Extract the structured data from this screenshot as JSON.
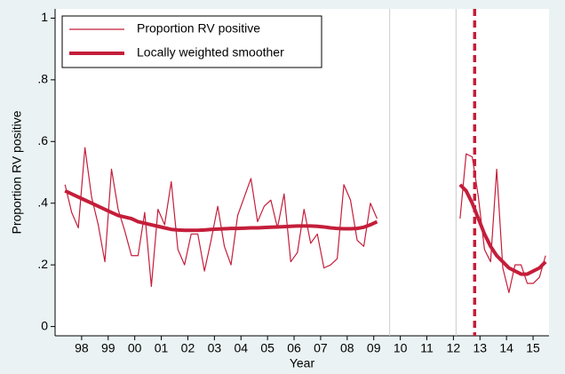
{
  "chart_data": {
    "type": "line",
    "x_label": "Year",
    "y_label": "Proportion RV positive",
    "xlim": [
      1997,
      2015.6
    ],
    "ylim": [
      -0.03,
      1.03
    ],
    "xticks": [
      {
        "value": 1998,
        "label": "98"
      },
      {
        "value": 1999,
        "label": "99"
      },
      {
        "value": 2000,
        "label": "00"
      },
      {
        "value": 2001,
        "label": "01"
      },
      {
        "value": 2002,
        "label": "02"
      },
      {
        "value": 2003,
        "label": "03"
      },
      {
        "value": 2004,
        "label": "04"
      },
      {
        "value": 2005,
        "label": "05"
      },
      {
        "value": 2006,
        "label": "06"
      },
      {
        "value": 2007,
        "label": "07"
      },
      {
        "value": 2008,
        "label": "08"
      },
      {
        "value": 2009,
        "label": "09"
      },
      {
        "value": 2010,
        "label": "10"
      },
      {
        "value": 2011,
        "label": "11"
      },
      {
        "value": 2012,
        "label": "12"
      },
      {
        "value": 2013,
        "label": "13"
      },
      {
        "value": 2014,
        "label": "14"
      },
      {
        "value": 2015,
        "label": "15"
      }
    ],
    "yticks": [
      0,
      {
        "value": 0.2,
        "label": ".2"
      },
      {
        "value": 0.4,
        "label": ".4"
      },
      {
        "value": 0.6,
        "label": ".6"
      },
      {
        "value": 0.8,
        "label": ".8"
      },
      1
    ],
    "legend": "top-left",
    "vlines": [
      2009.6,
      2012.1
    ],
    "dashed_line_x": 2012.8,
    "x": [
      1997.375,
      1997.625,
      1997.875,
      1998.125,
      1998.375,
      1998.625,
      1998.875,
      1999.125,
      1999.375,
      1999.625,
      1999.875,
      2000.125,
      2000.375,
      2000.625,
      2000.875,
      2001.125,
      2001.375,
      2001.625,
      2001.875,
      2002.125,
      2002.375,
      2002.625,
      2002.875,
      2003.125,
      2003.375,
      2003.625,
      2003.875,
      2004.125,
      2004.375,
      2004.625,
      2004.875,
      2005.125,
      2005.375,
      2005.625,
      2005.875,
      2006.125,
      2006.375,
      2006.625,
      2006.875,
      2007.125,
      2007.375,
      2007.625,
      2007.875,
      2008.125,
      2008.375,
      2008.625,
      2008.875,
      2009.125,
      2010.5,
      2012.25,
      2012.48,
      2012.71,
      2012.94,
      2013.17,
      2013.4,
      2013.63,
      2013.86,
      2014.09,
      2014.32,
      2014.55,
      2014.78,
      2015.01,
      2015.24,
      2015.47
    ],
    "series": [
      {
        "name": "Proportion RV positive",
        "color": "#c41e3a",
        "width": 1.2,
        "values": [
          0.46,
          0.37,
          0.32,
          0.58,
          0.42,
          0.33,
          0.21,
          0.51,
          0.38,
          0.31,
          0.23,
          0.23,
          0.37,
          0.13,
          0.38,
          0.33,
          0.47,
          0.25,
          0.2,
          0.3,
          0.3,
          0.18,
          0.28,
          0.39,
          0.26,
          0.2,
          0.36,
          0.42,
          0.48,
          0.34,
          0.39,
          0.41,
          0.32,
          0.43,
          0.21,
          0.24,
          0.38,
          0.27,
          0.3,
          0.19,
          0.2,
          0.22,
          0.46,
          0.41,
          0.28,
          0.26,
          0.4,
          0.35,
          null,
          0.35,
          0.56,
          0.55,
          0.42,
          0.25,
          0.21,
          0.51,
          0.19,
          0.11,
          0.2,
          0.2,
          0.14,
          0.14,
          0.16,
          0.23
        ]
      },
      {
        "name": "Locally weighted smoother",
        "color": "#c41e3a",
        "width": 4,
        "values": [
          0.44,
          0.43,
          0.42,
          0.41,
          0.4,
          0.39,
          0.38,
          0.37,
          0.36,
          0.355,
          0.35,
          0.34,
          0.335,
          0.33,
          0.325,
          0.32,
          0.315,
          0.313,
          0.312,
          0.312,
          0.312,
          0.313,
          0.315,
          0.316,
          0.317,
          0.318,
          0.318,
          0.319,
          0.32,
          0.32,
          0.321,
          0.322,
          0.323,
          0.324,
          0.325,
          0.326,
          0.326,
          0.326,
          0.325,
          0.323,
          0.32,
          0.318,
          0.317,
          0.317,
          0.318,
          0.322,
          0.33,
          0.34,
          null,
          0.46,
          0.44,
          0.4,
          0.35,
          0.3,
          0.26,
          0.23,
          0.21,
          0.19,
          0.18,
          0.17,
          0.17,
          0.18,
          0.19,
          0.21
        ]
      }
    ]
  }
}
